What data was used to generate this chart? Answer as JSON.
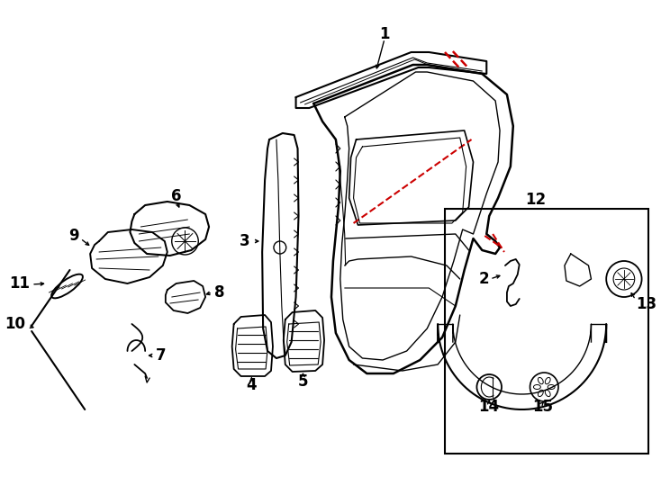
{
  "bg_color": "#ffffff",
  "line_color": "#000000",
  "red_color": "#cc0000",
  "figsize": [
    7.34,
    5.4
  ],
  "dpi": 100
}
